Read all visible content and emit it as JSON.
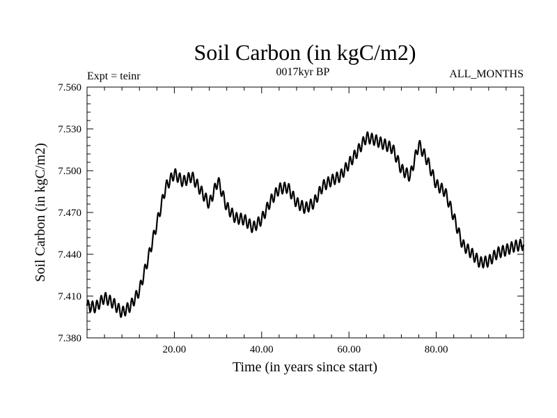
{
  "chart_data": {
    "type": "line",
    "title": "Soil Carbon (in kgC/m2)",
    "subtitle_left": "Expt = teinr",
    "subtitle_center": "0017kyr BP",
    "subtitle_right": "ALL_MONTHS",
    "xlabel": "Time (in years since start)",
    "ylabel": "Soil Carbon (in kgC/m2)",
    "xlim": [
      0,
      100
    ],
    "ylim": [
      7.38,
      7.56
    ],
    "x_ticks": [
      20,
      40,
      60,
      80
    ],
    "x_tick_labels": [
      "20.00",
      "40.00",
      "60.00",
      "80.00"
    ],
    "y_ticks": [
      7.38,
      7.41,
      7.44,
      7.47,
      7.5,
      7.53,
      7.56
    ],
    "y_tick_labels": [
      "7.380",
      "7.410",
      "7.440",
      "7.470",
      "7.500",
      "7.530",
      "7.560"
    ],
    "grid": false,
    "series": [
      {
        "name": "Soil Carbon",
        "color": "#000000",
        "seasonal_amplitude": 0.004,
        "x": [
          0,
          2,
          4,
          6,
          8,
          10,
          12,
          14,
          16,
          18,
          20,
          22,
          24,
          26,
          28,
          30,
          32,
          34,
          36,
          38,
          40,
          42,
          44,
          46,
          48,
          50,
          52,
          54,
          56,
          58,
          60,
          62,
          64,
          66,
          68,
          70,
          72,
          74,
          76,
          78,
          80,
          82,
          84,
          86,
          88,
          90,
          92,
          94,
          96,
          98,
          100
        ],
        "values": [
          7.403,
          7.402,
          7.409,
          7.405,
          7.398,
          7.403,
          7.414,
          7.437,
          7.462,
          7.488,
          7.498,
          7.492,
          7.496,
          7.486,
          7.476,
          7.493,
          7.474,
          7.466,
          7.465,
          7.459,
          7.465,
          7.478,
          7.487,
          7.488,
          7.477,
          7.473,
          7.477,
          7.489,
          7.493,
          7.496,
          7.505,
          7.514,
          7.524,
          7.522,
          7.519,
          7.516,
          7.501,
          7.496,
          7.519,
          7.507,
          7.49,
          7.485,
          7.467,
          7.447,
          7.441,
          7.434,
          7.435,
          7.441,
          7.443,
          7.446,
          7.447
        ]
      }
    ]
  }
}
